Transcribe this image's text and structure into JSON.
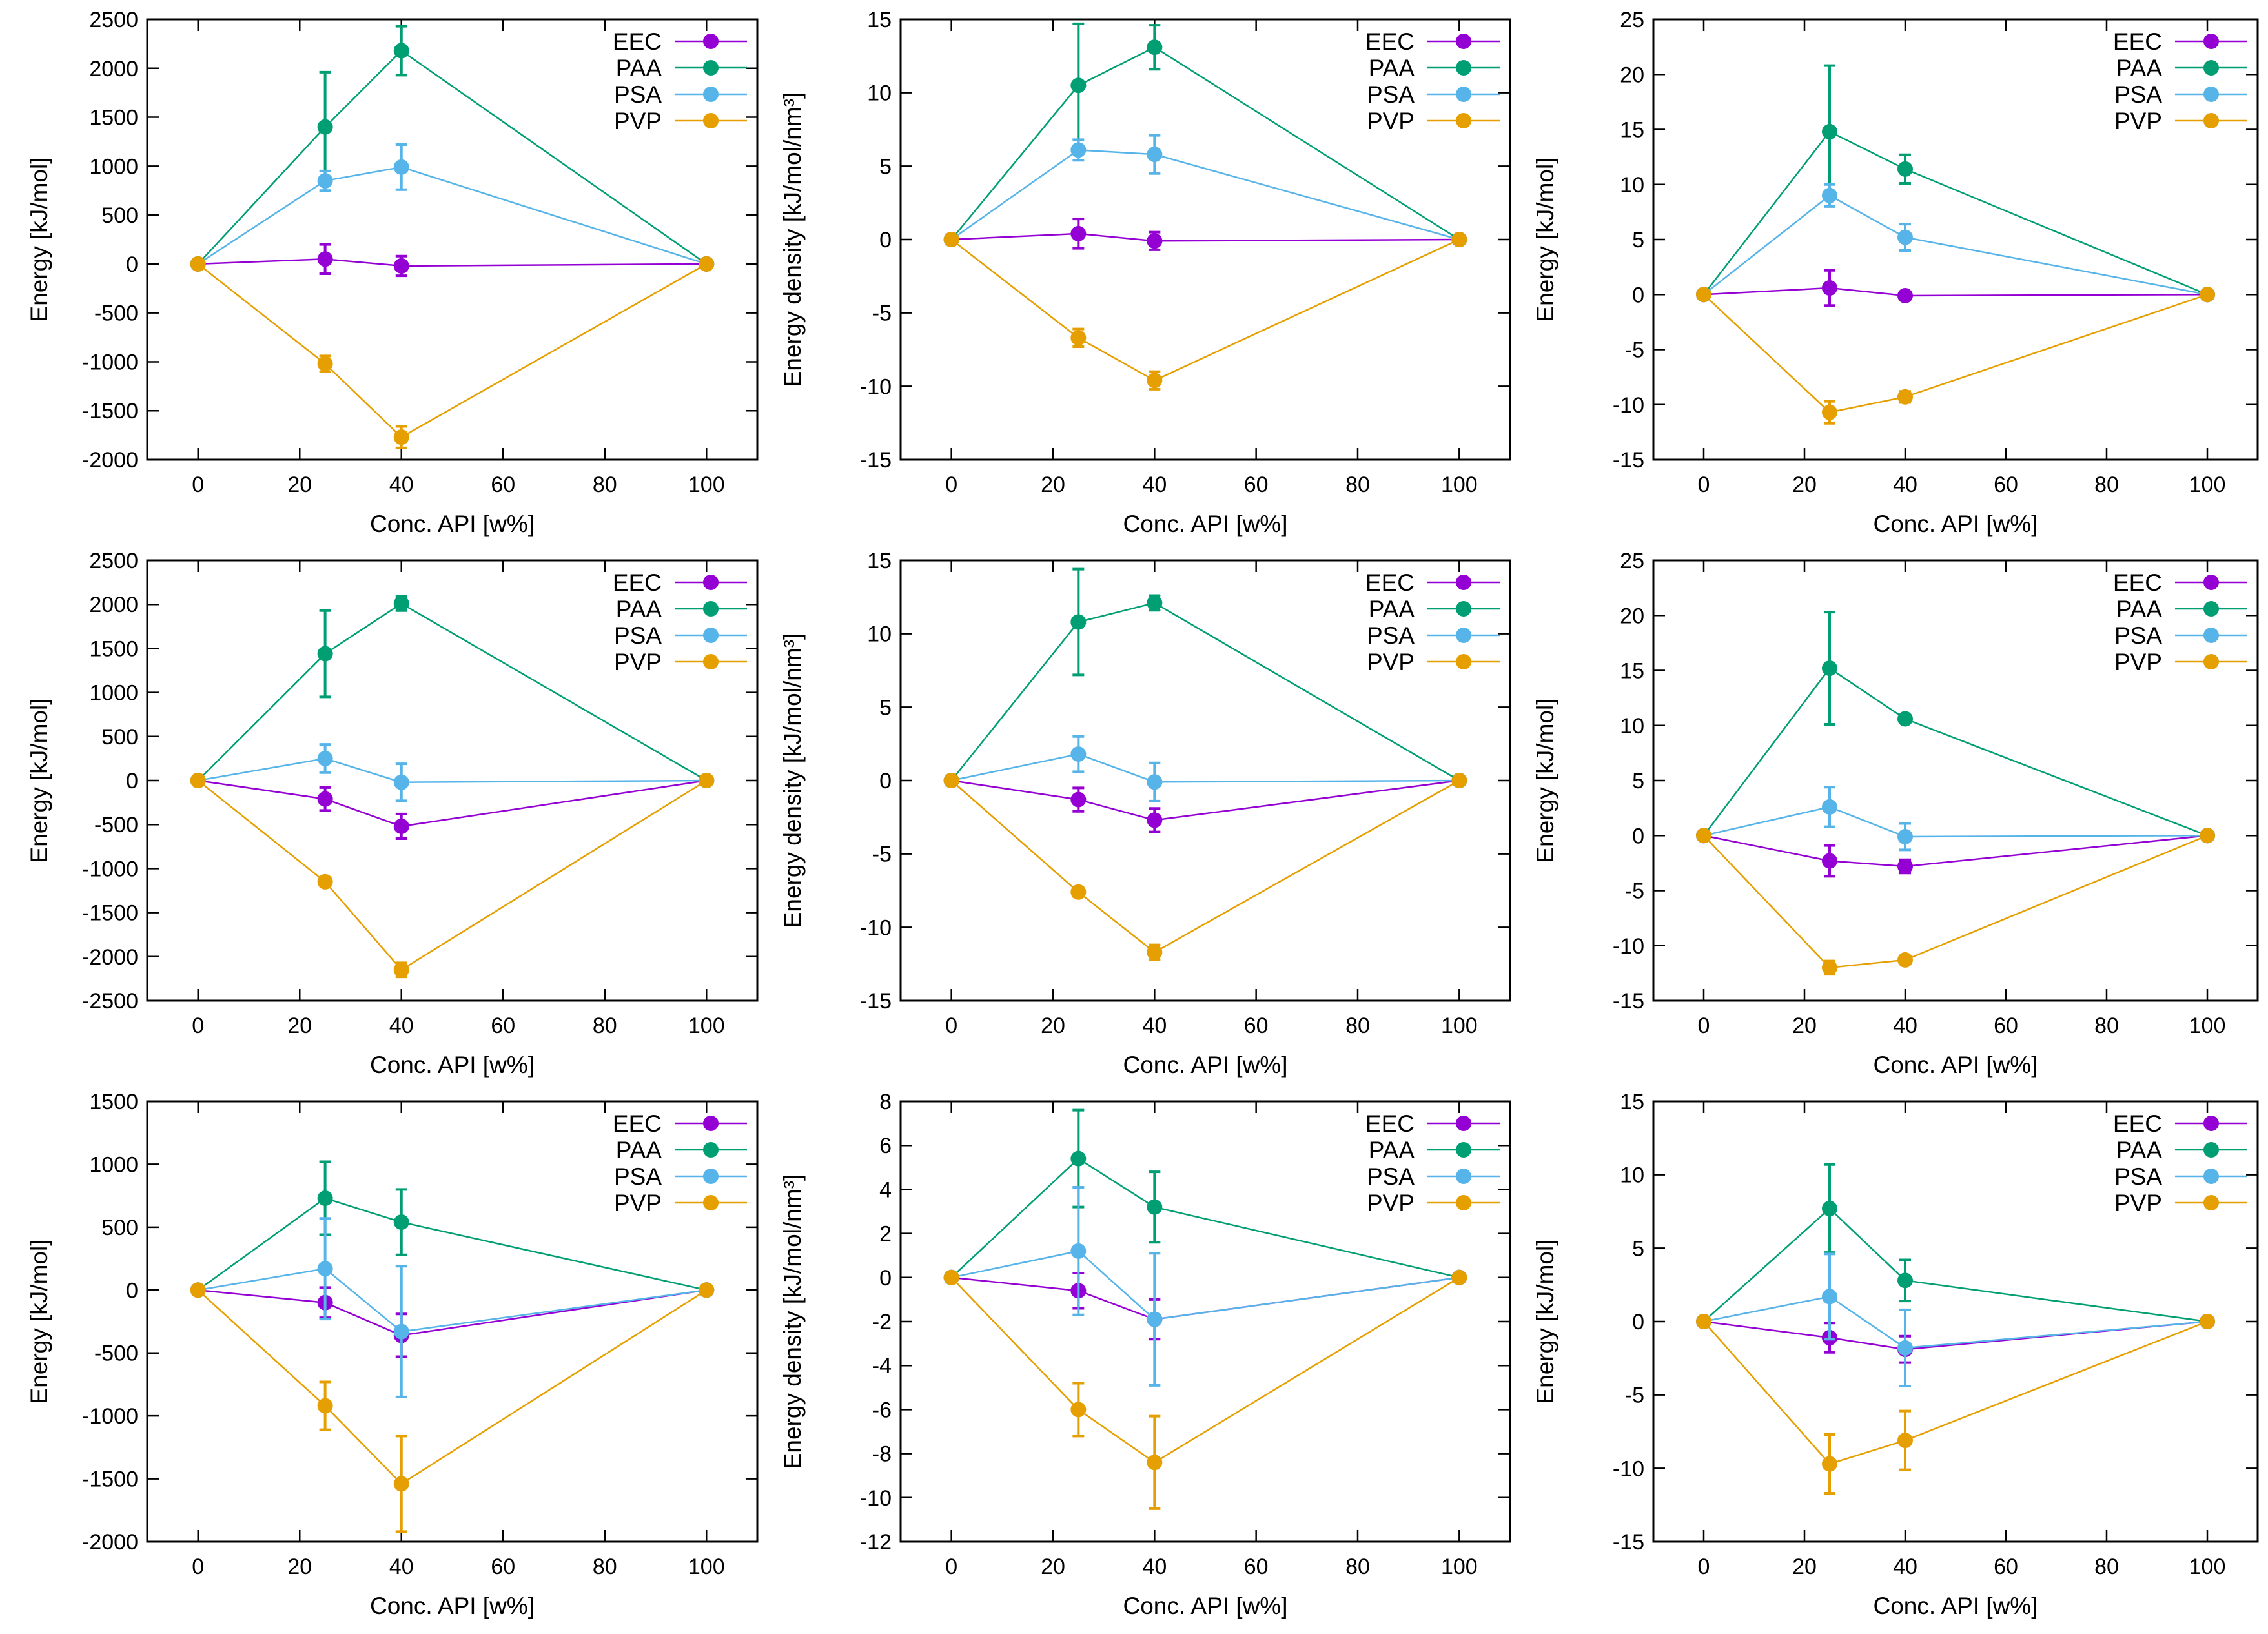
{
  "figure": {
    "rows": 3,
    "cols": 3
  },
  "colors": {
    "EEC": "#9400d3",
    "PAA": "#009e73",
    "PSA": "#56b4e9",
    "PVP": "#e69f00"
  },
  "chart_data": [
    {
      "type": "line",
      "xlabel": "Conc. API [w%]",
      "ylabel": "Energy [kJ/mol]",
      "xlim": [
        -10,
        110
      ],
      "xticks": [
        0,
        20,
        40,
        60,
        80,
        100
      ],
      "ylim": [
        -2000,
        2500
      ],
      "yticks": [
        -2000,
        -1500,
        -1000,
        -500,
        0,
        500,
        1000,
        1500,
        2000,
        2500
      ],
      "legend": "top-right",
      "series": [
        {
          "name": "EEC",
          "x": [
            0,
            25,
            40,
            100
          ],
          "y": [
            0,
            50,
            -20,
            0
          ],
          "err": [
            0,
            150,
            100,
            0
          ]
        },
        {
          "name": "PAA",
          "x": [
            0,
            25,
            40,
            100
          ],
          "y": [
            0,
            1400,
            2180,
            0
          ],
          "err": [
            0,
            560,
            250,
            0
          ]
        },
        {
          "name": "PSA",
          "x": [
            0,
            25,
            40,
            100
          ],
          "y": [
            0,
            850,
            990,
            0
          ],
          "err": [
            0,
            100,
            230,
            0
          ]
        },
        {
          "name": "PVP",
          "x": [
            0,
            25,
            40,
            100
          ],
          "y": [
            0,
            -1020,
            -1770,
            0
          ],
          "err": [
            0,
            80,
            110,
            0
          ]
        }
      ]
    },
    {
      "type": "line",
      "xlabel": "Conc. API [w%]",
      "ylabel": "Energy density [kJ/mol/nm³]",
      "xlim": [
        -10,
        110
      ],
      "xticks": [
        0,
        20,
        40,
        60,
        80,
        100
      ],
      "ylim": [
        -15,
        15
      ],
      "yticks": [
        -15,
        -10,
        -5,
        0,
        5,
        10,
        15
      ],
      "legend": "top-right",
      "series": [
        {
          "name": "EEC",
          "x": [
            0,
            25,
            40,
            100
          ],
          "y": [
            0,
            0.4,
            -0.1,
            0
          ],
          "err": [
            0,
            1.0,
            0.6,
            0
          ]
        },
        {
          "name": "PAA",
          "x": [
            0,
            25,
            40,
            100
          ],
          "y": [
            0,
            10.5,
            13.1,
            0
          ],
          "err": [
            0,
            4.2,
            1.5,
            0
          ]
        },
        {
          "name": "PSA",
          "x": [
            0,
            25,
            40,
            100
          ],
          "y": [
            0,
            6.1,
            5.8,
            0
          ],
          "err": [
            0,
            0.7,
            1.3,
            0
          ]
        },
        {
          "name": "PVP",
          "x": [
            0,
            25,
            40,
            100
          ],
          "y": [
            0,
            -6.7,
            -9.6,
            0
          ],
          "err": [
            0,
            0.6,
            0.6,
            0
          ]
        }
      ]
    },
    {
      "type": "line",
      "xlabel": "Conc. API [w%]",
      "ylabel": "Energy [kJ/mol]",
      "xlim": [
        -10,
        110
      ],
      "xticks": [
        0,
        20,
        40,
        60,
        80,
        100
      ],
      "ylim": [
        -15,
        25
      ],
      "yticks": [
        -15,
        -10,
        -5,
        0,
        5,
        10,
        15,
        20,
        25
      ],
      "legend": "top-right",
      "series": [
        {
          "name": "EEC",
          "x": [
            0,
            25,
            40,
            100
          ],
          "y": [
            0,
            0.6,
            -0.1,
            0
          ],
          "err": [
            0,
            1.6,
            0.3,
            0
          ]
        },
        {
          "name": "PAA",
          "x": [
            0,
            25,
            40,
            100
          ],
          "y": [
            0,
            14.8,
            11.4,
            0
          ],
          "err": [
            0,
            6.0,
            1.3,
            0
          ]
        },
        {
          "name": "PSA",
          "x": [
            0,
            25,
            40,
            100
          ],
          "y": [
            0,
            9.0,
            5.2,
            0
          ],
          "err": [
            0,
            1.0,
            1.2,
            0
          ]
        },
        {
          "name": "PVP",
          "x": [
            0,
            25,
            40,
            100
          ],
          "y": [
            0,
            -10.7,
            -9.3,
            0
          ],
          "err": [
            0,
            1.0,
            0.5,
            0
          ]
        }
      ]
    },
    {
      "type": "line",
      "xlabel": "Conc. API [w%]",
      "ylabel": "Energy [kJ/mol]",
      "xlim": [
        -10,
        110
      ],
      "xticks": [
        0,
        20,
        40,
        60,
        80,
        100
      ],
      "ylim": [
        -2500,
        2500
      ],
      "yticks": [
        -2500,
        -2000,
        -1500,
        -1000,
        -500,
        0,
        500,
        1000,
        1500,
        2000,
        2500
      ],
      "legend": "top-right",
      "series": [
        {
          "name": "EEC",
          "x": [
            0,
            25,
            40,
            100
          ],
          "y": [
            0,
            -210,
            -520,
            0
          ],
          "err": [
            0,
            130,
            140,
            0
          ]
        },
        {
          "name": "PAA",
          "x": [
            0,
            25,
            40,
            100
          ],
          "y": [
            0,
            1440,
            2010,
            0
          ],
          "err": [
            0,
            490,
            80,
            0
          ]
        },
        {
          "name": "PSA",
          "x": [
            0,
            25,
            40,
            100
          ],
          "y": [
            0,
            250,
            -20,
            0
          ],
          "err": [
            0,
            160,
            210,
            0
          ]
        },
        {
          "name": "PVP",
          "x": [
            0,
            25,
            40,
            100
          ],
          "y": [
            0,
            -1150,
            -2150,
            0
          ],
          "err": [
            0,
            50,
            80,
            0
          ]
        }
      ]
    },
    {
      "type": "line",
      "xlabel": "Conc. API [w%]",
      "ylabel": "Energy density [kJ/mol/nm³]",
      "xlim": [
        -10,
        110
      ],
      "xticks": [
        0,
        20,
        40,
        60,
        80,
        100
      ],
      "ylim": [
        -15,
        15
      ],
      "yticks": [
        -15,
        -10,
        -5,
        0,
        5,
        10,
        15
      ],
      "legend": "top-right",
      "series": [
        {
          "name": "EEC",
          "x": [
            0,
            25,
            40,
            100
          ],
          "y": [
            0,
            -1.3,
            -2.7,
            0
          ],
          "err": [
            0,
            0.8,
            0.8,
            0
          ]
        },
        {
          "name": "PAA",
          "x": [
            0,
            25,
            40,
            100
          ],
          "y": [
            0,
            10.8,
            12.1,
            0
          ],
          "err": [
            0,
            3.6,
            0.5,
            0
          ]
        },
        {
          "name": "PSA",
          "x": [
            0,
            25,
            40,
            100
          ],
          "y": [
            0,
            1.8,
            -0.1,
            0
          ],
          "err": [
            0,
            1.2,
            1.3,
            0
          ]
        },
        {
          "name": "PVP",
          "x": [
            0,
            25,
            40,
            100
          ],
          "y": [
            0,
            -7.6,
            -11.7,
            0
          ],
          "err": [
            0,
            0.3,
            0.5,
            0
          ]
        }
      ]
    },
    {
      "type": "line",
      "xlabel": "Conc. API [w%]",
      "ylabel": "Energy [kJ/mol]",
      "xlim": [
        -10,
        110
      ],
      "xticks": [
        0,
        20,
        40,
        60,
        80,
        100
      ],
      "ylim": [
        -15,
        25
      ],
      "yticks": [
        -15,
        -10,
        -5,
        0,
        5,
        10,
        15,
        20,
        25
      ],
      "legend": "top-right",
      "series": [
        {
          "name": "EEC",
          "x": [
            0,
            25,
            40,
            100
          ],
          "y": [
            0,
            -2.3,
            -2.8,
            0
          ],
          "err": [
            0,
            1.4,
            0.6,
            0
          ]
        },
        {
          "name": "PAA",
          "x": [
            0,
            25,
            40,
            100
          ],
          "y": [
            0,
            15.2,
            10.6,
            0
          ],
          "err": [
            0,
            5.1,
            0.3,
            0
          ]
        },
        {
          "name": "PSA",
          "x": [
            0,
            25,
            40,
            100
          ],
          "y": [
            0,
            2.6,
            -0.1,
            0
          ],
          "err": [
            0,
            1.8,
            1.2,
            0
          ]
        },
        {
          "name": "PVP",
          "x": [
            0,
            25,
            40,
            100
          ],
          "y": [
            0,
            -12.0,
            -11.3,
            0
          ],
          "err": [
            0,
            0.6,
            0.3,
            0
          ]
        }
      ]
    },
    {
      "type": "line",
      "xlabel": "Conc. API [w%]",
      "ylabel": "Energy [kJ/mol]",
      "xlim": [
        -10,
        110
      ],
      "xticks": [
        0,
        20,
        40,
        60,
        80,
        100
      ],
      "ylim": [
        -2000,
        1500
      ],
      "yticks": [
        -2000,
        -1500,
        -1000,
        -500,
        0,
        500,
        1000,
        1500
      ],
      "legend": "top-right",
      "series": [
        {
          "name": "EEC",
          "x": [
            0,
            25,
            40,
            100
          ],
          "y": [
            0,
            -100,
            -360,
            0
          ],
          "err": [
            0,
            120,
            170,
            0
          ]
        },
        {
          "name": "PAA",
          "x": [
            0,
            25,
            40,
            100
          ],
          "y": [
            0,
            730,
            540,
            0
          ],
          "err": [
            0,
            290,
            260,
            0
          ]
        },
        {
          "name": "PSA",
          "x": [
            0,
            25,
            40,
            100
          ],
          "y": [
            0,
            170,
            -330,
            0
          ],
          "err": [
            0,
            400,
            520,
            0
          ]
        },
        {
          "name": "PVP",
          "x": [
            0,
            25,
            40,
            100
          ],
          "y": [
            0,
            -920,
            -1540,
            0
          ],
          "err": [
            0,
            190,
            380,
            0
          ]
        }
      ]
    },
    {
      "type": "line",
      "xlabel": "Conc. API [w%]",
      "ylabel": "Energy density [kJ/mol/nm³]",
      "xlim": [
        -10,
        110
      ],
      "xticks": [
        0,
        20,
        40,
        60,
        80,
        100
      ],
      "ylim": [
        -12,
        8
      ],
      "yticks": [
        -12,
        -10,
        -8,
        -6,
        -4,
        -2,
        0,
        2,
        4,
        6,
        8
      ],
      "legend": "top-right",
      "series": [
        {
          "name": "EEC",
          "x": [
            0,
            25,
            40,
            100
          ],
          "y": [
            0,
            -0.6,
            -1.9,
            0
          ],
          "err": [
            0,
            0.8,
            0.9,
            0
          ]
        },
        {
          "name": "PAA",
          "x": [
            0,
            25,
            40,
            100
          ],
          "y": [
            0,
            5.4,
            3.2,
            0
          ],
          "err": [
            0,
            2.2,
            1.6,
            0
          ]
        },
        {
          "name": "PSA",
          "x": [
            0,
            25,
            40,
            100
          ],
          "y": [
            0,
            1.2,
            -1.9,
            0
          ],
          "err": [
            0,
            2.9,
            3.0,
            0
          ]
        },
        {
          "name": "PVP",
          "x": [
            0,
            25,
            40,
            100
          ],
          "y": [
            0,
            -6.0,
            -8.4,
            0
          ],
          "err": [
            0,
            1.2,
            2.1,
            0
          ]
        }
      ]
    },
    {
      "type": "line",
      "xlabel": "Conc. API [w%]",
      "ylabel": "Energy [kJ/mol]",
      "xlim": [
        -10,
        110
      ],
      "xticks": [
        0,
        20,
        40,
        60,
        80,
        100
      ],
      "ylim": [
        -15,
        15
      ],
      "yticks": [
        -15,
        -10,
        -5,
        0,
        5,
        10,
        15
      ],
      "legend": "top-right",
      "series": [
        {
          "name": "EEC",
          "x": [
            0,
            25,
            40,
            100
          ],
          "y": [
            0,
            -1.1,
            -1.9,
            0
          ],
          "err": [
            0,
            1.0,
            0.9,
            0
          ]
        },
        {
          "name": "PAA",
          "x": [
            0,
            25,
            40,
            100
          ],
          "y": [
            0,
            7.7,
            2.8,
            0
          ],
          "err": [
            0,
            3.0,
            1.4,
            0
          ]
        },
        {
          "name": "PSA",
          "x": [
            0,
            25,
            40,
            100
          ],
          "y": [
            0,
            1.7,
            -1.8,
            0
          ],
          "err": [
            0,
            2.9,
            2.6,
            0
          ]
        },
        {
          "name": "PVP",
          "x": [
            0,
            25,
            40,
            100
          ],
          "y": [
            0,
            -9.7,
            -8.1,
            0
          ],
          "err": [
            0,
            2.0,
            2.0,
            0
          ]
        }
      ]
    }
  ]
}
